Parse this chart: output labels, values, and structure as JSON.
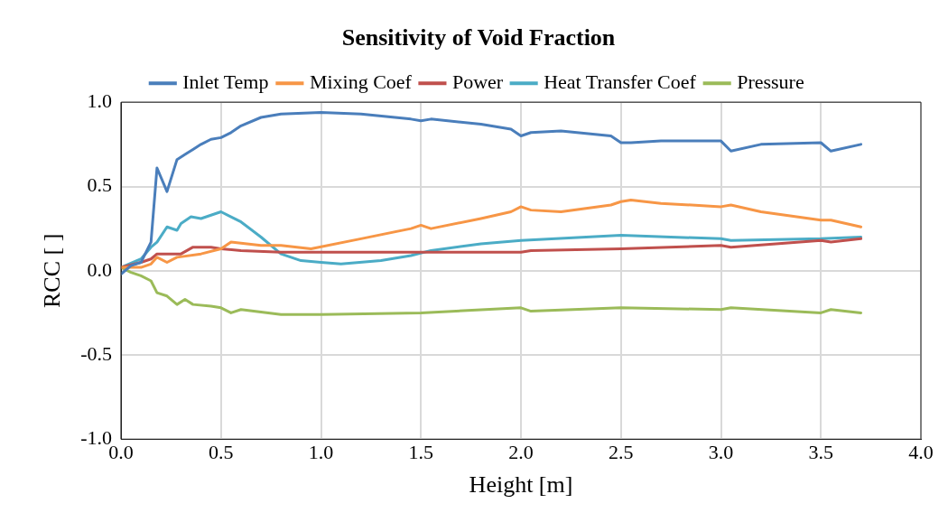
{
  "chart_data": {
    "type": "line",
    "title": "Sensitivity of Void Fraction",
    "xlabel": "Height [m]",
    "ylabel": "RCC [ ]",
    "xlim": [
      0,
      4
    ],
    "xticks": [
      {
        "value": 0,
        "label": "0.0"
      },
      {
        "value": 0.5,
        "label": "0.5"
      },
      {
        "value": 1,
        "label": "1.0"
      },
      {
        "value": 1.5,
        "label": "1.5"
      },
      {
        "value": 2,
        "label": "2.0"
      },
      {
        "value": 2.5,
        "label": "2.5"
      },
      {
        "value": 3,
        "label": "3.0"
      },
      {
        "value": 3.5,
        "label": "3.5"
      },
      {
        "value": 4,
        "label": "4.0"
      }
    ],
    "ylim": [
      -1,
      1
    ],
    "yticks": [
      {
        "value": -1,
        "label": "-1.0"
      },
      {
        "value": -0.5,
        "label": "-0.5"
      },
      {
        "value": 0,
        "label": "0.0"
      },
      {
        "value": 0.5,
        "label": "0.5"
      },
      {
        "value": 1,
        "label": "1.0"
      }
    ],
    "grid": true,
    "legend": "top",
    "marker": "none",
    "line_style": "solid",
    "series": [
      {
        "name": "Inlet Temp",
        "color": "#4a7ebb",
        "x": [
          0,
          0.05,
          0.1,
          0.15,
          0.18,
          0.23,
          0.28,
          0.32,
          0.36,
          0.4,
          0.45,
          0.5,
          0.55,
          0.6,
          0.7,
          0.8,
          1.0,
          1.2,
          1.45,
          1.5,
          1.55,
          1.8,
          1.95,
          2.0,
          2.05,
          2.2,
          2.45,
          2.5,
          2.55,
          2.7,
          3.0,
          3.05,
          3.2,
          3.5,
          3.55,
          3.7
        ],
        "values": [
          -0.02,
          0.03,
          0.05,
          0.17,
          0.61,
          0.47,
          0.66,
          0.69,
          0.72,
          0.75,
          0.78,
          0.79,
          0.82,
          0.86,
          0.91,
          0.93,
          0.94,
          0.93,
          0.9,
          0.89,
          0.9,
          0.87,
          0.84,
          0.8,
          0.82,
          0.83,
          0.8,
          0.76,
          0.76,
          0.77,
          0.77,
          0.71,
          0.75,
          0.76,
          0.71,
          0.75
        ]
      },
      {
        "name": "Mixing Coef",
        "color": "#f79646",
        "x": [
          0,
          0.1,
          0.15,
          0.18,
          0.23,
          0.28,
          0.4,
          0.5,
          0.55,
          0.7,
          0.8,
          0.95,
          1.2,
          1.45,
          1.5,
          1.55,
          1.8,
          1.95,
          2.0,
          2.05,
          2.2,
          2.45,
          2.5,
          2.55,
          2.7,
          3.0,
          3.05,
          3.2,
          3.5,
          3.55,
          3.7
        ],
        "values": [
          0.02,
          0.02,
          0.04,
          0.08,
          0.05,
          0.08,
          0.1,
          0.13,
          0.17,
          0.15,
          0.15,
          0.13,
          0.19,
          0.25,
          0.27,
          0.25,
          0.31,
          0.35,
          0.38,
          0.36,
          0.35,
          0.39,
          0.41,
          0.42,
          0.4,
          0.38,
          0.39,
          0.35,
          0.3,
          0.3,
          0.26
        ]
      },
      {
        "name": "Power",
        "color": "#c0504d",
        "x": [
          0,
          0.1,
          0.15,
          0.18,
          0.3,
          0.36,
          0.45,
          0.5,
          0.6,
          0.8,
          1.0,
          1.5,
          2.0,
          2.05,
          2.5,
          3.0,
          3.05,
          3.5,
          3.55,
          3.7
        ],
        "values": [
          0.02,
          0.05,
          0.07,
          0.1,
          0.1,
          0.14,
          0.14,
          0.13,
          0.12,
          0.11,
          0.11,
          0.11,
          0.11,
          0.12,
          0.13,
          0.15,
          0.14,
          0.18,
          0.17,
          0.19
        ]
      },
      {
        "name": "Heat Transfer Coef",
        "color": "#4bacc6",
        "x": [
          0,
          0.1,
          0.15,
          0.18,
          0.23,
          0.28,
          0.3,
          0.35,
          0.4,
          0.45,
          0.5,
          0.55,
          0.6,
          0.7,
          0.8,
          0.9,
          1.0,
          1.1,
          1.3,
          1.45,
          1.55,
          1.8,
          2.0,
          2.5,
          3.0,
          3.05,
          3.5,
          3.7
        ],
        "values": [
          0.02,
          0.07,
          0.14,
          0.17,
          0.26,
          0.24,
          0.28,
          0.32,
          0.31,
          0.33,
          0.35,
          0.32,
          0.29,
          0.2,
          0.1,
          0.06,
          0.05,
          0.04,
          0.06,
          0.09,
          0.12,
          0.16,
          0.18,
          0.21,
          0.19,
          0.18,
          0.19,
          0.2
        ]
      },
      {
        "name": "Pressure",
        "color": "#9bbb59",
        "x": [
          0,
          0.05,
          0.1,
          0.15,
          0.18,
          0.23,
          0.28,
          0.32,
          0.36,
          0.45,
          0.5,
          0.55,
          0.6,
          0.8,
          1.0,
          1.5,
          2.0,
          2.05,
          2.5,
          3.0,
          3.05,
          3.5,
          3.55,
          3.7
        ],
        "values": [
          0.02,
          -0.01,
          -0.03,
          -0.06,
          -0.13,
          -0.15,
          -0.2,
          -0.17,
          -0.2,
          -0.21,
          -0.22,
          -0.25,
          -0.23,
          -0.26,
          -0.26,
          -0.25,
          -0.22,
          -0.24,
          -0.22,
          -0.23,
          -0.22,
          -0.25,
          -0.23,
          -0.25
        ]
      }
    ]
  }
}
